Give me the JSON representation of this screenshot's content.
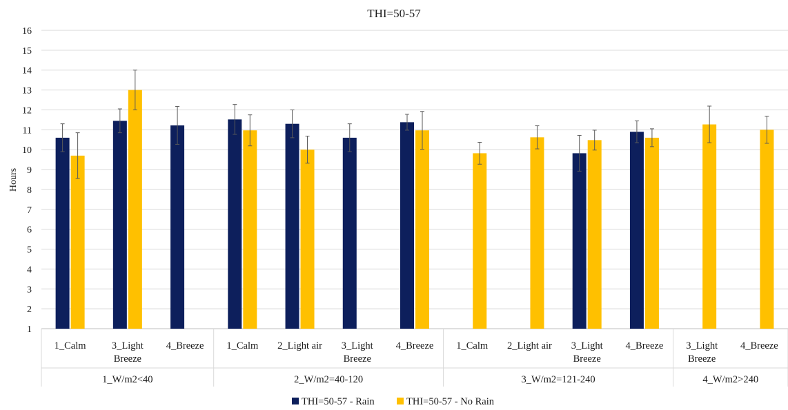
{
  "chart_data": {
    "type": "bar",
    "title": "THI=50-57",
    "ylabel": "Hours",
    "xlabel": "",
    "ylim": [
      1,
      16
    ],
    "yticks": [
      1,
      2,
      3,
      4,
      5,
      6,
      7,
      8,
      9,
      10,
      11,
      12,
      13,
      14,
      15,
      16
    ],
    "grid": true,
    "legend_position": "bottom",
    "groups": [
      {
        "label": "1_W/m2<40",
        "categories": [
          "1_Calm",
          "3_Light Breeze",
          "4_Breeze"
        ]
      },
      {
        "label": "2_W/m2=40-120",
        "categories": [
          "1_Calm",
          "2_Light air",
          "3_Light Breeze",
          "4_Breeze"
        ]
      },
      {
        "label": "3_W/m2=121-240",
        "categories": [
          "1_Calm",
          "2_Light air",
          "3_Light Breeze",
          "4_Breeze"
        ]
      },
      {
        "label": "4_W/m2>240",
        "categories": [
          "3_Light Breeze",
          "4_Breeze"
        ]
      }
    ],
    "series": [
      {
        "name": "THI=50-57 - Rain",
        "color": "#0d1f5c",
        "values": [
          10.6,
          11.45,
          11.22,
          11.52,
          11.3,
          10.6,
          11.38,
          null,
          null,
          9.82,
          10.9,
          null,
          null
        ],
        "errors": [
          0.7,
          0.6,
          0.95,
          0.75,
          0.7,
          0.7,
          0.4,
          null,
          null,
          0.9,
          0.55,
          null,
          null
        ]
      },
      {
        "name": "THI=50-57 - No Rain",
        "color": "#ffc000",
        "values": [
          9.7,
          13.0,
          null,
          10.97,
          10.0,
          null,
          10.97,
          9.82,
          10.62,
          10.48,
          10.6,
          11.27,
          11.0
        ],
        "errors": [
          1.15,
          1.0,
          null,
          0.78,
          0.68,
          null,
          0.95,
          0.55,
          0.58,
          0.5,
          0.45,
          0.92,
          0.68
        ]
      }
    ]
  }
}
